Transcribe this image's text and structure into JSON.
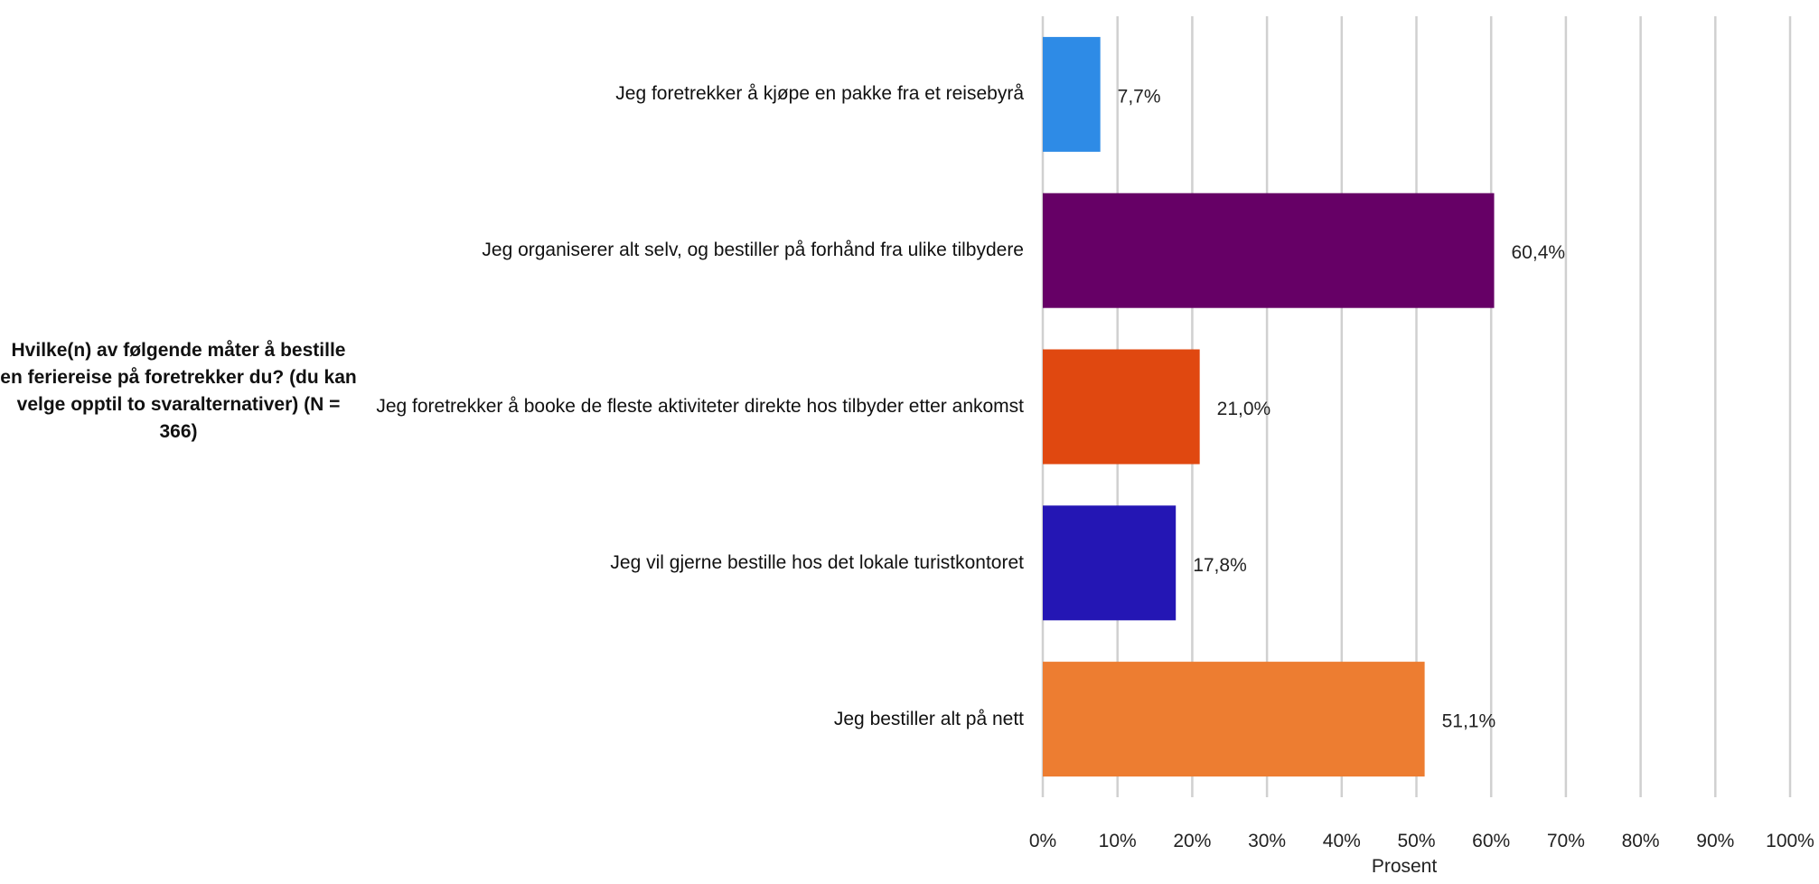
{
  "chart_data": {
    "type": "bar",
    "orientation": "horizontal",
    "title": "Hvilke(n) av følgende måter å bestille en feriereise på foretrekker du? (du kan velge opptil to svaralternativer) (N = 366)",
    "xlabel": "Prosent",
    "ylabel": "",
    "xlim": [
      0,
      100
    ],
    "x_ticks": [
      "0%",
      "10%",
      "20%",
      "30%",
      "40%",
      "50%",
      "60%",
      "70%",
      "80%",
      "90%",
      "100%"
    ],
    "grid": "vertical",
    "categories": [
      "Jeg foretrekker å kjøpe en pakke fra et reisebyrå",
      "Jeg organiserer alt selv, og bestiller på forhånd fra ulike tilbydere",
      "Jeg foretrekker å booke de fleste aktiviteter direkte hos tilbyder etter ankomst",
      "Jeg vil gjerne bestille hos det lokale turistkontoret",
      "Jeg bestiller alt på nett"
    ],
    "values": [
      7.7,
      60.4,
      21.0,
      17.8,
      51.1
    ],
    "data_labels": [
      "7,7%",
      "60,4%",
      "21,0%",
      "17,8%",
      "51,1%"
    ],
    "colors": [
      "#2e8be6",
      "#660066",
      "#e04810",
      "#2416b4",
      "#ed7d31"
    ]
  }
}
